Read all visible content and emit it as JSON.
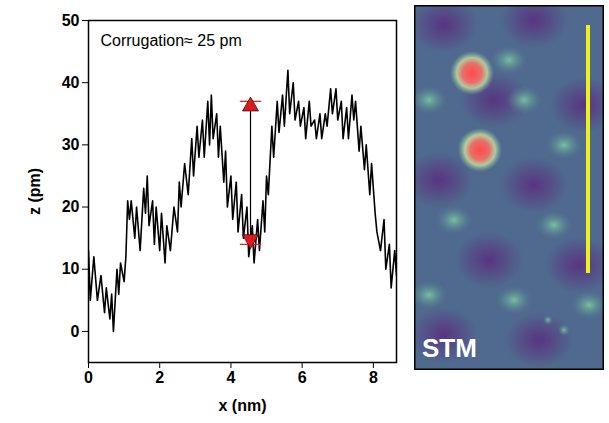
{
  "chart_data": {
    "type": "line",
    "xlabel": "x (nm)",
    "ylabel": "z (pm)",
    "color": "#000000",
    "annotation": "Corrugation≈ 25 pm",
    "corrugation_marker": {
      "x": 4.55,
      "y_low": 14,
      "y_high": 37,
      "color": "#e0191e"
    },
    "xlim": [
      0,
      8.65
    ],
    "xticks": [
      0,
      2,
      4,
      6,
      8
    ],
    "ylim": [
      -5,
      50
    ],
    "yticks": [
      0,
      10,
      20,
      30,
      40,
      50
    ],
    "x": [
      0,
      0.05,
      0.15,
      0.25,
      0.35,
      0.45,
      0.5,
      0.6,
      0.65,
      0.7,
      0.8,
      0.85,
      0.9,
      1.0,
      1.05,
      1.1,
      1.15,
      1.2,
      1.3,
      1.35,
      1.45,
      1.5,
      1.55,
      1.6,
      1.65,
      1.7,
      1.8,
      1.85,
      1.9,
      2.0,
      2.05,
      2.15,
      2.2,
      2.3,
      2.4,
      2.5,
      2.55,
      2.6,
      2.7,
      2.8,
      2.9,
      2.95,
      3.05,
      3.1,
      3.2,
      3.25,
      3.35,
      3.4,
      3.45,
      3.5,
      3.6,
      3.65,
      3.7,
      3.8,
      3.85,
      3.9,
      4.0,
      4.05,
      4.15,
      4.2,
      4.3,
      4.35,
      4.45,
      4.5,
      4.6,
      4.65,
      4.75,
      4.8,
      4.9,
      4.95,
      5.0,
      5.05,
      5.15,
      5.2,
      5.3,
      5.35,
      5.45,
      5.5,
      5.6,
      5.65,
      5.75,
      5.8,
      5.9,
      5.95,
      6.05,
      6.1,
      6.2,
      6.25,
      6.35,
      6.4,
      6.5,
      6.55,
      6.65,
      6.7,
      6.8,
      6.85,
      6.95,
      7.0,
      7.1,
      7.15,
      7.25,
      7.3,
      7.4,
      7.45,
      7.5,
      7.6,
      7.65,
      7.75,
      7.8,
      7.9,
      7.95,
      8.05,
      8.1,
      8.2,
      8.3,
      8.35,
      8.45,
      8.5,
      8.6,
      8.65
    ],
    "values": [
      13,
      5,
      12,
      5,
      9,
      3,
      7,
      2,
      6,
      0,
      10,
      6,
      11,
      8,
      12,
      21,
      18,
      21,
      15,
      20,
      13,
      18,
      23,
      19,
      25,
      17,
      21,
      14,
      20,
      13,
      19,
      11,
      17,
      13,
      20,
      16,
      24,
      20,
      27,
      22,
      31,
      25,
      33,
      28,
      34,
      28,
      37,
      30,
      38,
      31,
      35,
      28,
      33,
      24,
      29,
      20,
      25,
      18,
      24,
      16,
      22,
      15,
      20,
      12,
      17,
      11,
      18,
      13,
      21,
      16,
      25,
      22,
      33,
      28,
      37,
      32,
      38,
      33,
      42,
      35,
      40,
      34,
      37,
      33,
      36,
      31,
      37,
      33,
      34,
      31,
      35,
      31,
      35,
      33,
      39,
      35,
      39,
      34,
      37,
      31,
      36,
      31,
      38,
      34,
      37,
      29,
      33,
      26,
      30,
      22,
      27,
      19,
      16,
      13,
      18,
      10,
      14,
      7,
      13,
      9
    ]
  },
  "image_panel": {
    "label": "STM"
  }
}
